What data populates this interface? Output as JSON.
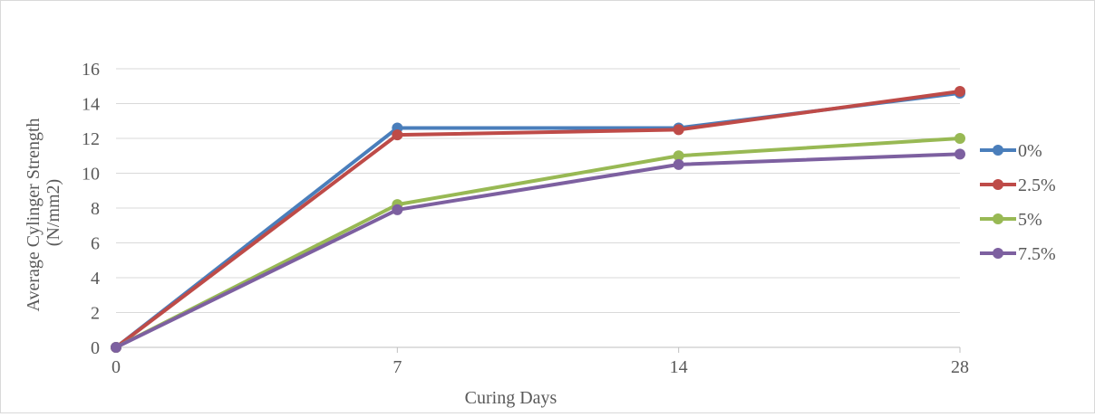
{
  "chart_data": {
    "type": "line",
    "title": "",
    "xlabel": "Curing Days",
    "ylabel_lines": [
      "Average Cylinger Strength",
      "(N/mm2)"
    ],
    "categories": [
      "0",
      "7",
      "14",
      "28"
    ],
    "ylim": [
      0,
      16
    ],
    "yticks": [
      0,
      2,
      4,
      6,
      8,
      10,
      12,
      14,
      16
    ],
    "grid": true,
    "legend_position": "right",
    "series": [
      {
        "name": "0%",
        "color": "#4a7ebb",
        "values": [
          0,
          12.6,
          12.6,
          14.6
        ]
      },
      {
        "name": "2.5%",
        "color": "#be4b48",
        "values": [
          0,
          12.2,
          12.5,
          14.7
        ]
      },
      {
        "name": "5%",
        "color": "#98b954",
        "values": [
          0,
          8.2,
          11.0,
          12.0
        ]
      },
      {
        "name": "7.5%",
        "color": "#7d60a0",
        "values": [
          0,
          7.9,
          10.5,
          11.1
        ]
      }
    ]
  }
}
